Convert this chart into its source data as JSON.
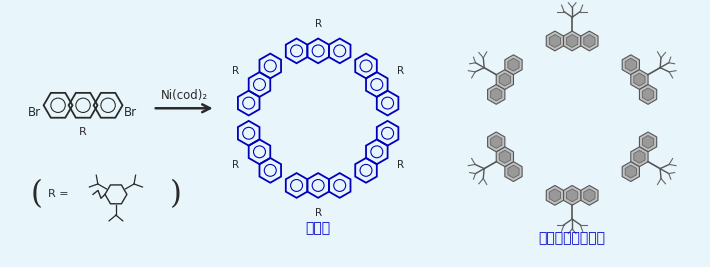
{
  "bg_color": "#e8f6fc",
  "blue_color": "#0000bb",
  "dark_color": "#2a2a2a",
  "gray_color": "#888888",
  "gray_fill": "#aaaaaa",
  "text_color": "#0000cc",
  "label_kanbunshi": "環分子",
  "label_crystal": "環分子の結晶構造",
  "reagent": "Ni(cod)₂",
  "fig_width": 7.1,
  "fig_height": 2.67,
  "dpi": 100
}
